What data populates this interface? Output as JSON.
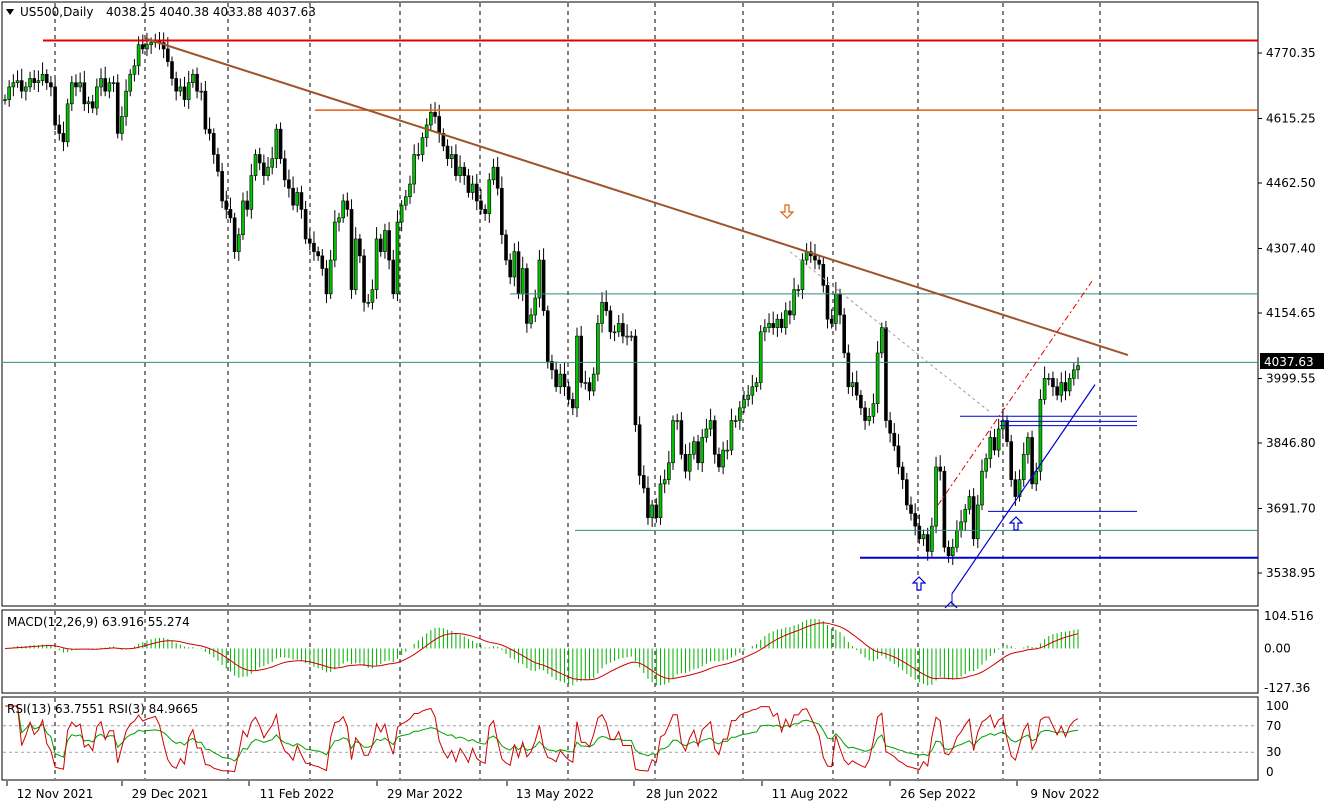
{
  "header": {
    "symbol": "US500,Daily",
    "ohlc": "4038.25 4040.38 4033.88 4037.63"
  },
  "price_axis": {
    "ticks": [
      "4770.35",
      "4615.25",
      "4462.50",
      "4307.40",
      "4154.65",
      "3999.55",
      "3846.80",
      "3691.70",
      "3538.95"
    ],
    "current_price": "4037.63"
  },
  "time_axis": {
    "labels": [
      "12 Nov 2021",
      "29 Dec 2021",
      "11 Feb 2022",
      "29 Mar 2022",
      "13 May 2022",
      "28 Jun 2022",
      "11 Aug 2022",
      "26 Sep 2022",
      "9 Nov 2022"
    ]
  },
  "macd": {
    "label": "MACD(12,26,9) 63.916 55.274",
    "ticks": [
      "104.516",
      "0.00",
      "-127.36"
    ]
  },
  "rsi": {
    "label": "RSI(13) 63.7551  RSI(3) 84.9665",
    "ticks": [
      "100",
      "70",
      "30",
      "0"
    ]
  },
  "colors": {
    "background": "#ffffff",
    "grid": "#000000",
    "candle": "#000000",
    "bull_fill": "#00c000",
    "bear_fill": "#000000",
    "resistance_red": "#e00000",
    "resistance_orange": "#e06010",
    "trendline_brown": "#a0522d",
    "support_blue": "#0000d0",
    "teal_line": "#2e8b7a",
    "macd_hist": "#00b000",
    "macd_signal": "#d00000",
    "rsi13": "#00a000",
    "rsi3": "#d00000",
    "arrow_up": "#0000d0",
    "arrow_down": "#e06010"
  },
  "chart_data": {
    "type": "candlestick",
    "symbol": "US500",
    "timeframe": "Daily",
    "ylim": [
      3480,
      4850
    ],
    "x_labels": [
      "12 Nov 2021",
      "29 Dec 2021",
      "11 Feb 2022",
      "29 Mar 2022",
      "13 May 2022",
      "28 Jun 2022",
      "11 Aug 2022",
      "26 Sep 2022",
      "9 Nov 2022"
    ],
    "closes": [
      4660,
      4690,
      4700,
      4705,
      4680,
      4690,
      4710,
      4700,
      4705,
      4720,
      4700,
      4690,
      4600,
      4580,
      4560,
      4650,
      4700,
      4690,
      4700,
      4650,
      4655,
      4640,
      4690,
      4710,
      4680,
      4700,
      4700,
      4580,
      4620,
      4680,
      4720,
      4740,
      4790,
      4780,
      4790,
      4795,
      4800,
      4795,
      4780,
      4750,
      4710,
      4680,
      4690,
      4660,
      4700,
      4720,
      4680,
      4680,
      4590,
      4580,
      4530,
      4490,
      4420,
      4400,
      4380,
      4300,
      4340,
      4420,
      4400,
      4480,
      4530,
      4510,
      4480,
      4500,
      4520,
      4590,
      4520,
      4470,
      4450,
      4410,
      4440,
      4400,
      4330,
      4320,
      4300,
      4290,
      4260,
      4200,
      4280,
      4370,
      4380,
      4420,
      4400,
      4210,
      4330,
      4290,
      4180,
      4180,
      4210,
      4330,
      4300,
      4350,
      4280,
      4200,
      4370,
      4410,
      4430,
      4460,
      4530,
      4530,
      4570,
      4600,
      4630,
      4620,
      4580,
      4550,
      4520,
      4530,
      4480,
      4500,
      4480,
      4440,
      4460,
      4420,
      4400,
      4390,
      4470,
      4500,
      4450,
      4340,
      4280,
      4240,
      4300,
      4200,
      4260,
      4130,
      4150,
      4190,
      4280,
      4160,
      4040,
      4020,
      3980,
      4010,
      3980,
      3950,
      3930,
      4100,
      3990,
      3990,
      3970,
      4010,
      4130,
      4180,
      4160,
      4110,
      4110,
      4130,
      4100,
      4100,
      4100,
      3890,
      3770,
      3740,
      3670,
      3700,
      3670,
      3750,
      3760,
      3800,
      3900,
      3900,
      3820,
      3780,
      3820,
      3850,
      3800,
      3860,
      3880,
      3900,
      3820,
      3790,
      3830,
      3830,
      3900,
      3900,
      3930,
      3950,
      3960,
      3980,
      3990,
      4110,
      4120,
      4130,
      4120,
      4140,
      4120,
      4160,
      4150,
      4210,
      4210,
      4280,
      4300,
      4290,
      4280,
      4270,
      4220,
      4140,
      4130,
      4200,
      4150,
      4060,
      3980,
      3990,
      3960,
      3930,
      3900,
      3910,
      3940,
      4060,
      4120,
      3900,
      3870,
      3840,
      3790,
      3760,
      3700,
      3680,
      3650,
      3620,
      3630,
      3590,
      3650,
      3790,
      3780,
      3600,
      3580,
      3600,
      3640,
      3660,
      3690,
      3720,
      3620,
      3700,
      3780,
      3810,
      3860,
      3830,
      3880,
      3900,
      3850,
      3760,
      3720,
      3760,
      3820,
      3860,
      3750,
      3780,
      3950,
      4000,
      4000,
      3980,
      3960,
      3990,
      3970,
      4000,
      4020,
      4030
    ],
    "horizontal_levels": [
      {
        "price": 4800,
        "color": "red"
      },
      {
        "price": 4635,
        "color": "orange"
      },
      {
        "price": 4200,
        "color": "teal"
      },
      {
        "price": 4037.63,
        "color": "teal"
      },
      {
        "price": 3910,
        "color": "blue"
      },
      {
        "price": 3685,
        "color": "blue"
      },
      {
        "price": 3640,
        "color": "teal"
      },
      {
        "price": 3575,
        "color": "blue"
      }
    ],
    "macd": {
      "ylim": [
        -127.36,
        104.516
      ]
    },
    "rsi": {
      "ylim": [
        0,
        100
      ],
      "levels": [
        70,
        30
      ]
    }
  }
}
